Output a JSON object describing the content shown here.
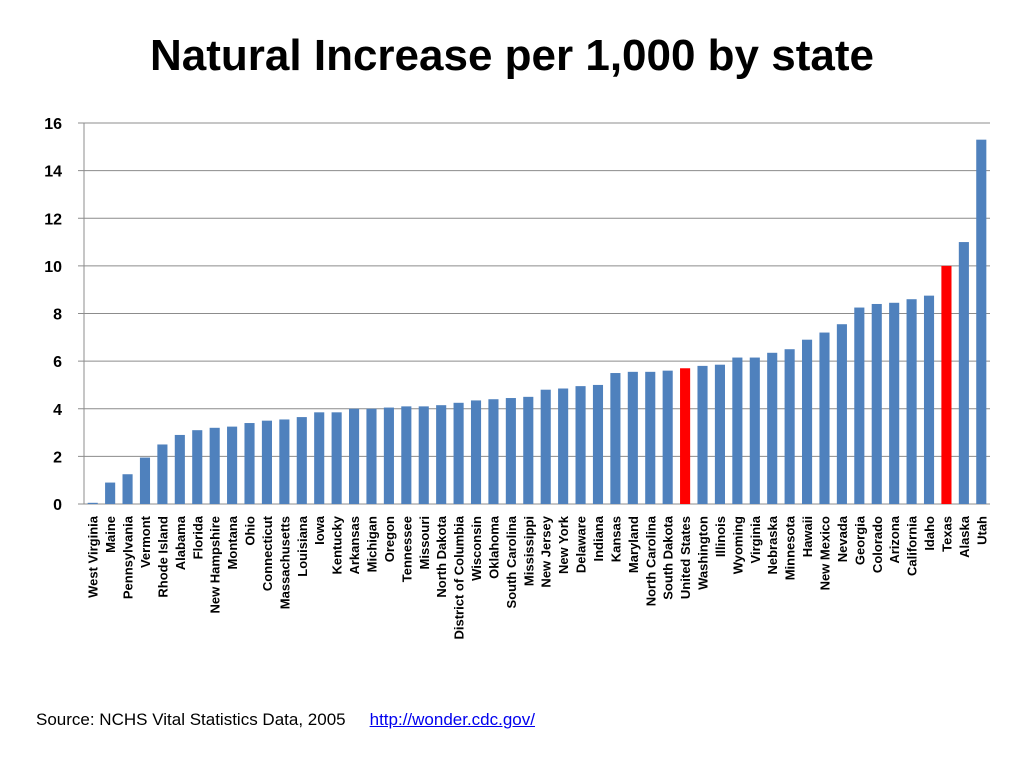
{
  "title": "Natural Increase per 1,000 by state",
  "source": {
    "text": "Source:  NCHS Vital Statistics Data, 2005",
    "link": "http://wonder.cdc.gov/"
  },
  "colors": {
    "bar": "#4f81bd",
    "highlight": "#ff0000",
    "grid": "#8c8c8c"
  },
  "chart_data": {
    "type": "bar",
    "title": "Natural Increase per 1,000 by state",
    "xlabel": "",
    "ylabel": "",
    "ylim": [
      0,
      16
    ],
    "yticks": [
      0,
      2,
      4,
      6,
      8,
      10,
      12,
      14,
      16
    ],
    "grid": true,
    "legend": "none",
    "categories": [
      "West Virginia",
      "Maine",
      "Pennsylvania",
      "Vermont",
      "Rhode Island",
      "Alabama",
      "Florida",
      "New Hampshire",
      "Montana",
      "Ohio",
      "Connecticut",
      "Massachusetts",
      "Louisiana",
      "Iowa",
      "Kentucky",
      "Arkansas",
      "Michigan",
      "Oregon",
      "Tennessee",
      "Missouri",
      "North Dakota",
      "District of Columbia",
      "Wisconsin",
      "Oklahoma",
      "South Carolina",
      "Mississippi",
      "New Jersey",
      "New York",
      "Delaware",
      "Indiana",
      "Kansas",
      "Maryland",
      "North Carolina",
      "South Dakota",
      "United States",
      "Washington",
      "Illinois",
      "Wyoming",
      "Virginia",
      "Nebraska",
      "Minnesota",
      "Hawaii",
      "New Mexico",
      "Nevada",
      "Georgia",
      "Colorado",
      "Arizona",
      "California",
      "Idaho",
      "Texas",
      "Alaska",
      "Utah"
    ],
    "values": [
      0.05,
      0.9,
      1.25,
      1.95,
      2.5,
      2.9,
      3.1,
      3.2,
      3.25,
      3.4,
      3.5,
      3.55,
      3.65,
      3.85,
      3.85,
      4.0,
      4.0,
      4.05,
      4.1,
      4.1,
      4.15,
      4.25,
      4.35,
      4.4,
      4.45,
      4.5,
      4.8,
      4.85,
      4.95,
      5.0,
      5.5,
      5.55,
      5.55,
      5.6,
      5.7,
      5.8,
      5.85,
      6.15,
      6.15,
      6.35,
      6.5,
      6.9,
      7.2,
      7.55,
      8.25,
      8.4,
      8.45,
      8.6,
      8.75,
      10.0,
      11.0,
      15.3
    ],
    "highlighted": [
      "United States",
      "Texas"
    ]
  }
}
